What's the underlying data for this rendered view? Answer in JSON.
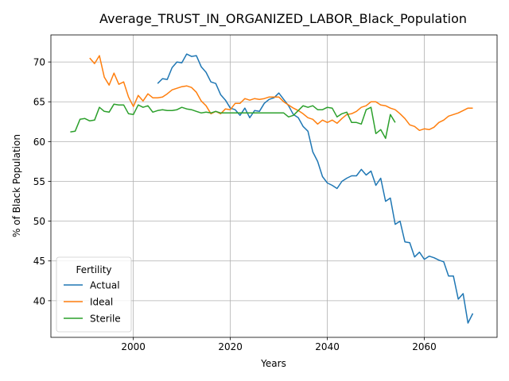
{
  "chart_data": {
    "type": "line",
    "title": "Average_TRUST_IN_ORGANIZED_LABOR_Black_Population",
    "xlabel": "Years",
    "ylabel": "% of Black Population",
    "xlim": [
      1983,
      2075
    ],
    "ylim": [
      35.4,
      73.4
    ],
    "xticks": [
      2000,
      2020,
      2040,
      2060
    ],
    "yticks": [
      40,
      45,
      50,
      55,
      60,
      65,
      70
    ],
    "grid": true,
    "legend": {
      "title": "Fertility",
      "placement": "lower-left"
    },
    "series": [
      {
        "name": "Actual",
        "color": "#1f77b4",
        "x": [
          2005,
          2006,
          2007,
          2008,
          2009,
          2010,
          2011,
          2012,
          2013,
          2014,
          2015,
          2016,
          2017,
          2018,
          2019,
          2020,
          2021,
          2022,
          2023,
          2024,
          2025,
          2026,
          2027,
          2028,
          2029,
          2030,
          2031,
          2032,
          2033,
          2034,
          2035,
          2036,
          2037,
          2038,
          2039,
          2040,
          2041,
          2042,
          2043,
          2044,
          2045,
          2046,
          2047,
          2048,
          2049,
          2050,
          2051,
          2052,
          2053,
          2054,
          2055,
          2056,
          2057,
          2058,
          2059,
          2060,
          2061,
          2062,
          2063,
          2064,
          2065,
          2066,
          2067,
          2068,
          2069,
          2070
        ],
        "y": [
          67.3,
          67.9,
          67.8,
          69.3,
          70.0,
          69.9,
          71.0,
          70.7,
          70.8,
          69.4,
          68.7,
          67.5,
          67.3,
          65.9,
          65.2,
          64.2,
          64.0,
          63.3,
          64.2,
          63.0,
          63.9,
          63.8,
          64.8,
          65.3,
          65.5,
          66.1,
          65.3,
          64.5,
          63.4,
          63.0,
          61.9,
          61.3,
          58.7,
          57.5,
          55.6,
          54.8,
          54.5,
          54.1,
          55.0,
          55.4,
          55.7,
          55.7,
          56.5,
          55.8,
          56.3,
          54.5,
          55.4,
          52.5,
          52.9,
          49.6,
          50.0,
          47.4,
          47.3,
          45.5,
          46.1,
          45.2,
          45.6,
          45.4,
          45.1,
          44.9,
          43.1,
          43.1,
          40.2,
          40.9,
          37.2,
          38.4
        ]
      },
      {
        "name": "Ideal",
        "color": "#ff7f0e",
        "x": [
          1991,
          1992,
          1993,
          1994,
          1995,
          1996,
          1997,
          1998,
          1999,
          2000,
          2001,
          2002,
          2003,
          2004,
          2005,
          2006,
          2007,
          2008,
          2009,
          2010,
          2011,
          2012,
          2013,
          2014,
          2015,
          2016,
          2017,
          2018,
          2019,
          2020,
          2021,
          2022,
          2023,
          2024,
          2025,
          2026,
          2027,
          2028,
          2029,
          2030,
          2031,
          2032,
          2033,
          2034,
          2035,
          2036,
          2037,
          2038,
          2039,
          2040,
          2041,
          2042,
          2043,
          2044,
          2045,
          2046,
          2047,
          2048,
          2049,
          2050,
          2051,
          2052,
          2053,
          2054,
          2055,
          2056,
          2057,
          2058,
          2059,
          2060,
          2061,
          2062,
          2063,
          2064,
          2065,
          2066,
          2067,
          2068,
          2069,
          2070
        ],
        "y": [
          70.5,
          69.8,
          70.8,
          68.1,
          67.1,
          68.6,
          67.2,
          67.5,
          65.6,
          64.4,
          65.8,
          65.1,
          66.0,
          65.5,
          65.5,
          65.6,
          66.0,
          66.5,
          66.7,
          66.9,
          67.0,
          66.8,
          66.2,
          65.1,
          64.5,
          63.5,
          63.8,
          63.5,
          64.1,
          64.0,
          64.8,
          64.8,
          65.4,
          65.2,
          65.4,
          65.3,
          65.4,
          65.6,
          65.6,
          65.6,
          65.0,
          64.6,
          64.2,
          63.9,
          63.5,
          63.0,
          62.8,
          62.2,
          62.7,
          62.4,
          62.7,
          62.3,
          62.9,
          63.4,
          63.5,
          63.8,
          64.3,
          64.5,
          65.0,
          65.0,
          64.6,
          64.5,
          64.2,
          64.0,
          63.5,
          62.9,
          62.1,
          61.9,
          61.4,
          61.6,
          61.5,
          61.8,
          62.4,
          62.7,
          63.2,
          63.4,
          63.6,
          63.9,
          64.2,
          64.2
        ]
      },
      {
        "name": "Sterile",
        "color": "#2ca02c",
        "x": [
          1987,
          1988,
          1989,
          1990,
          1991,
          1992,
          1993,
          1994,
          1995,
          1996,
          1997,
          1998,
          1999,
          2000,
          2001,
          2002,
          2003,
          2004,
          2005,
          2006,
          2007,
          2008,
          2009,
          2010,
          2011,
          2012,
          2013,
          2014,
          2015,
          2016,
          2017,
          2018,
          2019,
          2020,
          2021,
          2022,
          2023,
          2024,
          2025,
          2026,
          2027,
          2028,
          2029,
          2030,
          2031,
          2032,
          2033,
          2034,
          2035,
          2036,
          2037,
          2038,
          2039,
          2040,
          2041,
          2042,
          2043,
          2044,
          2045,
          2046,
          2047,
          2048,
          2049,
          2050,
          2051,
          2052,
          2053,
          2054
        ],
        "y": [
          61.2,
          61.3,
          62.8,
          62.9,
          62.6,
          62.7,
          64.3,
          63.8,
          63.7,
          64.7,
          64.6,
          64.6,
          63.5,
          63.4,
          64.6,
          64.3,
          64.5,
          63.7,
          63.9,
          64.0,
          63.9,
          63.9,
          64.0,
          64.3,
          64.1,
          64.0,
          63.8,
          63.6,
          63.7,
          63.6,
          63.8,
          63.6,
          63.6,
          63.6,
          63.6,
          63.6,
          63.6,
          63.6,
          63.6,
          63.6,
          63.6,
          63.6,
          63.6,
          63.6,
          63.6,
          63.1,
          63.3,
          63.9,
          64.5,
          64.3,
          64.5,
          64.0,
          64.0,
          64.3,
          64.2,
          63.1,
          63.5,
          63.7,
          62.4,
          62.4,
          62.2,
          64.0,
          64.3,
          61.0,
          61.5,
          60.4,
          63.4,
          62.4
        ]
      }
    ]
  }
}
